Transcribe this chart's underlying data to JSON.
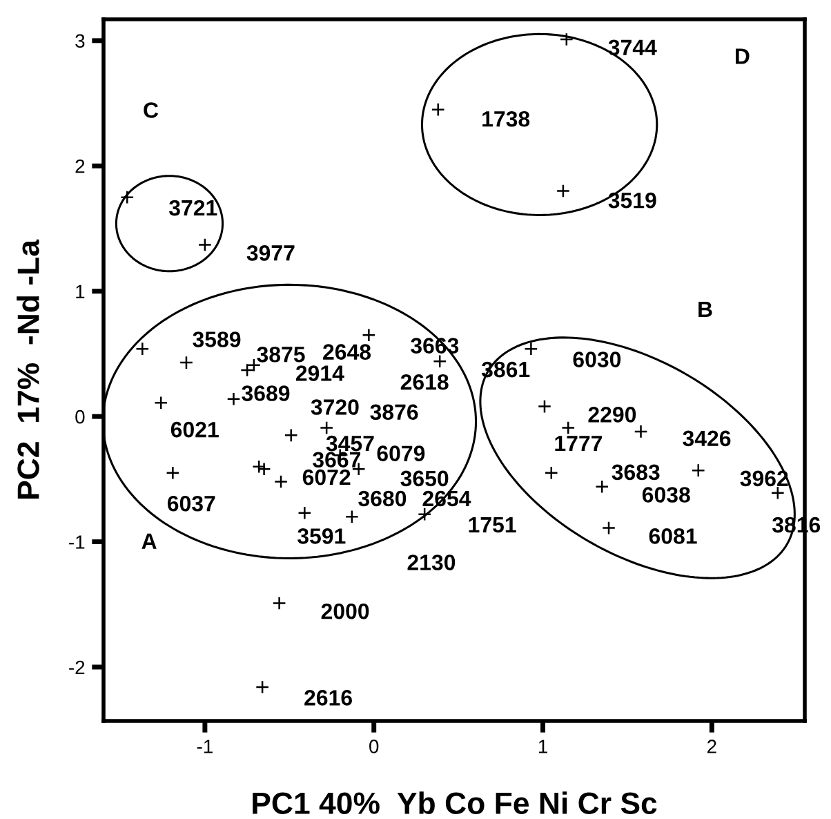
{
  "chart_data": {
    "type": "scatter",
    "xlabel": "PC1 40%  Yb Co Fe Ni Cr Sc",
    "ylabel": "PC2  17%  -Nd -La",
    "xlim": [
      -1.6,
      2.55
    ],
    "ylim": [
      -2.43,
      3.17
    ],
    "xticks": [
      -1,
      0,
      1,
      2
    ],
    "yticks": [
      -2,
      -1,
      0,
      1,
      2,
      3
    ],
    "grid": false,
    "legend": false,
    "marker": "cross",
    "series": [
      {
        "color": "#000000",
        "x": [
          -1.46,
          -1.0,
          -1.37,
          -1.11,
          -0.75,
          -0.71,
          -0.03,
          0.39,
          -0.83,
          -1.26,
          -0.49,
          -0.28,
          -1.19,
          -0.68,
          -0.65,
          -0.55,
          -0.41,
          -0.13,
          0.3,
          -0.2,
          -0.09,
          -0.56,
          -0.66,
          1.14,
          0.38,
          1.12,
          0.93,
          1.01,
          1.15,
          1.58,
          1.05,
          1.35,
          1.92,
          2.39,
          1.39
        ],
        "values": [
          1.75,
          1.37,
          0.54,
          0.43,
          0.37,
          0.41,
          0.65,
          0.44,
          0.14,
          0.11,
          -0.15,
          -0.09,
          -0.45,
          -0.4,
          -0.42,
          -0.52,
          -0.77,
          -0.8,
          -0.78,
          -0.31,
          -0.42,
          -1.49,
          -2.16,
          3.01,
          2.45,
          1.8,
          0.54,
          0.08,
          -0.09,
          -0.12,
          -0.45,
          -0.56,
          -0.43,
          -0.61,
          -0.89
        ]
      }
    ],
    "annotations": [
      "C",
      "3721",
      "3977",
      "3589",
      "3875",
      "2648",
      "2914",
      "3689",
      "3720",
      "3876",
      "6021",
      "3663",
      "2618",
      "3457",
      "3667",
      "6079",
      "6072",
      "3650",
      "6037",
      "3680",
      "2654",
      "3591",
      "A",
      "2130",
      "2000",
      "1751",
      "2616",
      "3744",
      "1738",
      "3519",
      "D",
      "B",
      "3861",
      "6030",
      "2290",
      "1777",
      "3426",
      "3683",
      "6038",
      "3962",
      "3816",
      "6081"
    ]
  }
}
